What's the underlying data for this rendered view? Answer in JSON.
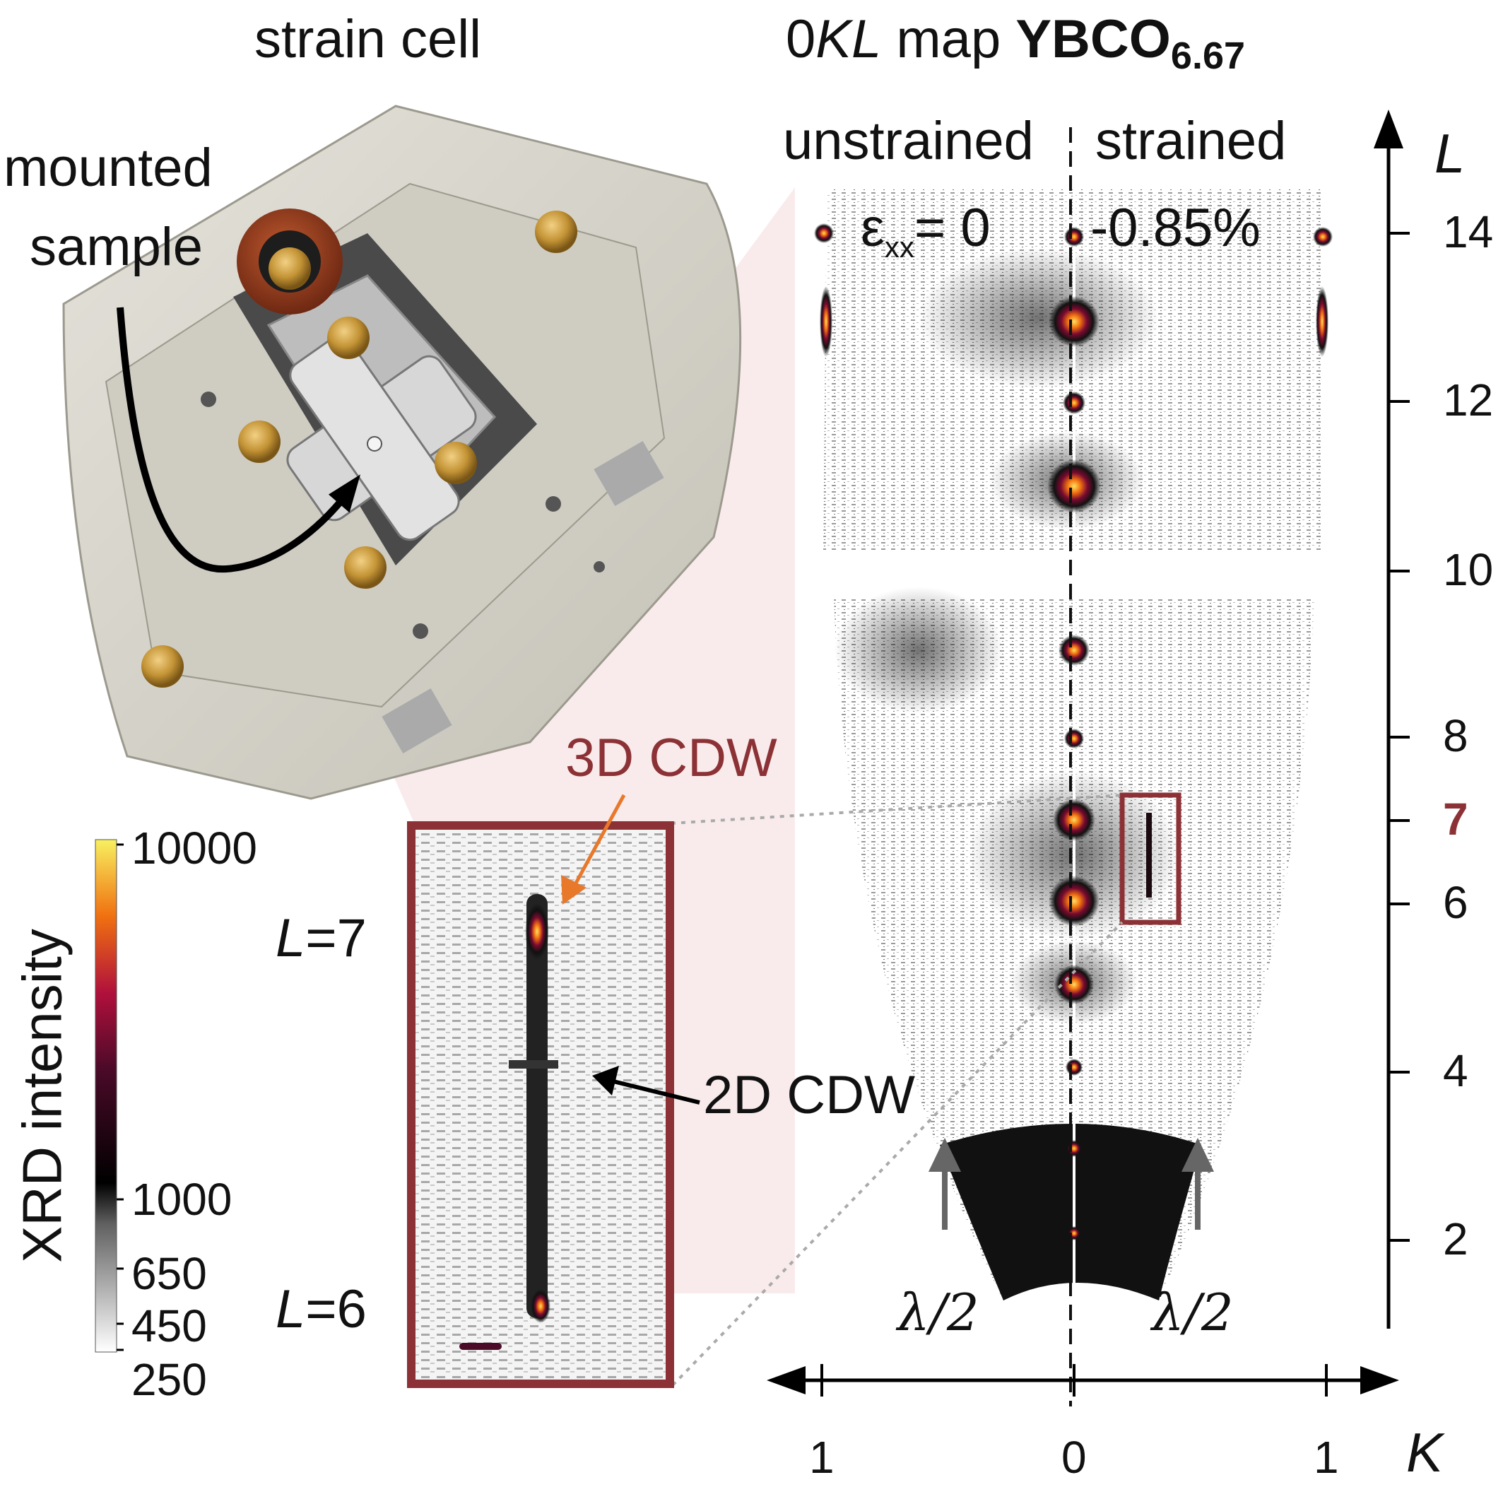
{
  "titles": {
    "strain_cell": "strain cell",
    "map_prefix": "0",
    "map_italic": "KL",
    "map_mid": "map",
    "compound": "YBCO",
    "compound_sub": "6.67"
  },
  "labels": {
    "mounted": "mounted",
    "sample": "sample",
    "unstrained": "unstrained",
    "strained": "strained",
    "eps_symbol": "ε",
    "eps_sub": "xx",
    "eps_value": "= 0",
    "strain_value": "-0.85%",
    "cdw3d": "3D CDW",
    "cdw2d": "2D CDW",
    "L7_italic": "L",
    "L7_value": "=7",
    "L6_italic": "L",
    "L6_value": "=6",
    "lambda_left": "λ/2",
    "lambda_right": "λ/2",
    "colorbar_title": "XRD intensity"
  },
  "axes": {
    "L_axis_label": "L",
    "K_axis_label": "K",
    "L_ticks": [
      "14",
      "12",
      "10",
      "8",
      "7",
      "6",
      "4",
      "2"
    ],
    "K_ticks": [
      "1",
      "0",
      "1"
    ]
  },
  "colorbar": {
    "ticks": [
      "10000",
      "1000",
      "650",
      "450",
      "250"
    ]
  },
  "colors": {
    "accent_brown": "#8c3236",
    "arrow_orange": "#e8782a",
    "cell_body": "#d6d3ca",
    "screw_gold": "#b9892c",
    "knob_copper": "#9a4222"
  }
}
